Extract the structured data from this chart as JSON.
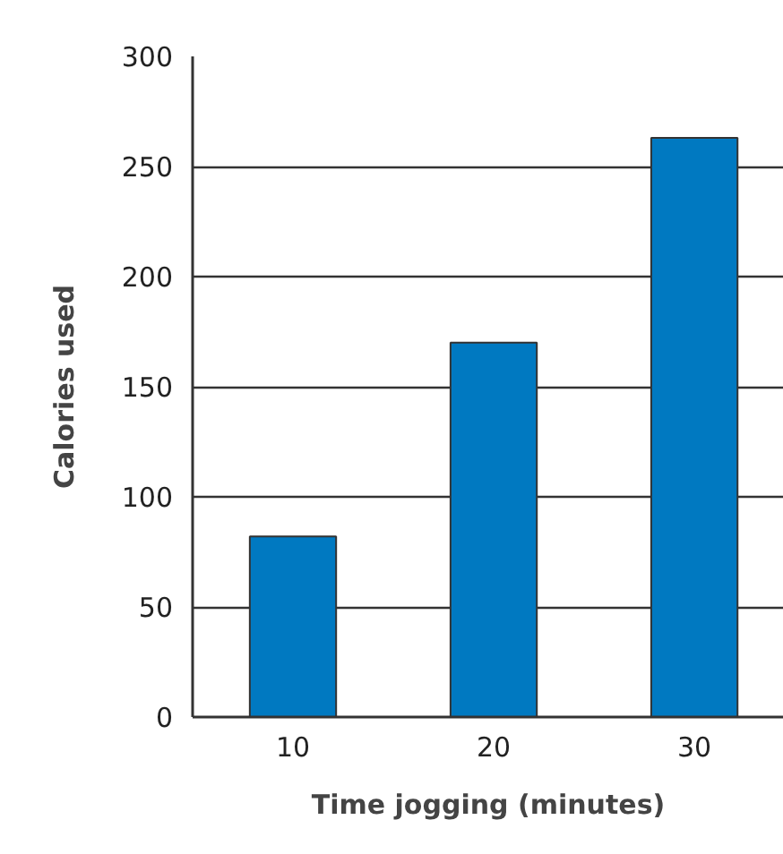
{
  "chart_data": {
    "type": "bar",
    "xlabel": "Time jogging (minutes)",
    "ylabel": "Calories used",
    "categories": [
      "10",
      "20",
      "30"
    ],
    "values": [
      82,
      170,
      263
    ],
    "color": "#0079c1",
    "ylim": [
      0,
      300
    ],
    "yticks": [
      0,
      50,
      100,
      150,
      200,
      250,
      300
    ],
    "grid": "y"
  }
}
